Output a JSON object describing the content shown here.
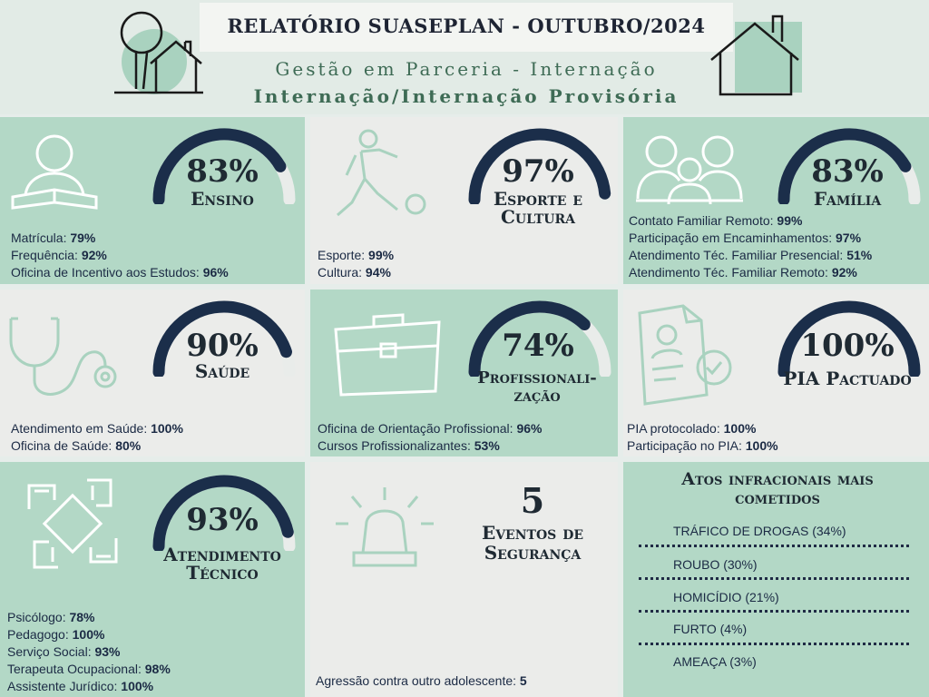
{
  "header": {
    "title": "RELATÓRIO SUASEPLAN - OUTUBRO/2024",
    "subtitle": "Gestão em Parceria - Internação",
    "subtitle2": "Internação/Internação Provisória"
  },
  "colors": {
    "green": "#b3d8c6",
    "gray": "#ebecea",
    "navy": "#1b2e4a",
    "track": "#e9ecea",
    "dark": "#1f2a33"
  },
  "cards": {
    "ensino": {
      "percent_label": "83%",
      "value": 83,
      "category": "Ensino",
      "icon": "reading-person-icon",
      "items": [
        {
          "label": "Matrícula: ",
          "value": "79%"
        },
        {
          "label": "Frequência: ",
          "value": "92%"
        },
        {
          "label": "Oficina de Incentivo aos Estudos: ",
          "value": "96%"
        }
      ]
    },
    "esporte": {
      "percent_label": "97%",
      "value": 97,
      "category_line1": "Esporte e",
      "category_line2": "Cultura",
      "icon": "soccer-player-icon",
      "items": [
        {
          "label": "Esporte: ",
          "value": "99%"
        },
        {
          "label": "Cultura: ",
          "value": "94%"
        }
      ]
    },
    "familia": {
      "percent_label": "83%",
      "value": 83,
      "category": "Família",
      "icon": "family-icon",
      "items": [
        {
          "label": "Contato Familiar Remoto: ",
          "value": "99%"
        },
        {
          "label": "Participação em Encaminhamentos: ",
          "value": "97%"
        },
        {
          "label": "Atendimento Téc. Familiar Presencial: ",
          "value": "51%"
        },
        {
          "label": "Atendimento Téc. Familiar Remoto: ",
          "value": "92%"
        }
      ]
    },
    "saude": {
      "percent_label": "90%",
      "value": 90,
      "category": "Saúde",
      "icon": "stethoscope-icon",
      "items": [
        {
          "label": "Atendimento em Saúde: ",
          "value": "100%"
        },
        {
          "label": "Oficina de Saúde: ",
          "value": "80%"
        }
      ]
    },
    "profissionalizacao": {
      "percent_label": "74%",
      "value": 74,
      "category_line1": "Profissionali-",
      "category_line2": "zação",
      "icon": "briefcase-icon",
      "items": [
        {
          "label": "Oficina de Orientação Profissional: ",
          "value": "96%"
        },
        {
          "label": "Cursos Profissionalizantes: ",
          "value": "53%"
        }
      ]
    },
    "pia": {
      "percent_label": "100%",
      "value": 100,
      "category": "PIA Pactuado",
      "icon": "certificate-document-icon",
      "items": [
        {
          "label": "PIA protocolado: ",
          "value": "100%"
        },
        {
          "label": "Participação no PIA: ",
          "value": "100%"
        }
      ]
    },
    "atendimento": {
      "percent_label": "93%",
      "value": 93,
      "category_line1": "Atendimento",
      "category_line2": "Técnico",
      "icon": "joined-hands-icon",
      "items": [
        {
          "label": "Psicólogo: ",
          "value": "78%"
        },
        {
          "label": "Pedagogo: ",
          "value": "100%"
        },
        {
          "label": "Serviço Social: ",
          "value": "93%"
        },
        {
          "label": "Terapeuta Ocupacional: ",
          "value": "98%"
        },
        {
          "label": "Assistente Jurídico: ",
          "value": "100%"
        }
      ]
    },
    "seguranca": {
      "count": "5",
      "category_line1": "Eventos de",
      "category_line2": "Segurança",
      "icon": "siren-alarm-icon",
      "items": [
        {
          "label": "Agressão contra outro adolescente: ",
          "value": "5"
        }
      ]
    }
  },
  "atos": {
    "title_line1": "Atos infracionais mais",
    "title_line2": "cometidos",
    "items": [
      "TRÁFICO DE DROGAS (34%)",
      "ROUBO (30%)",
      "HOMICÍDIO (21%)",
      "FURTO (4%)",
      "AMEAÇA (3%)"
    ]
  }
}
